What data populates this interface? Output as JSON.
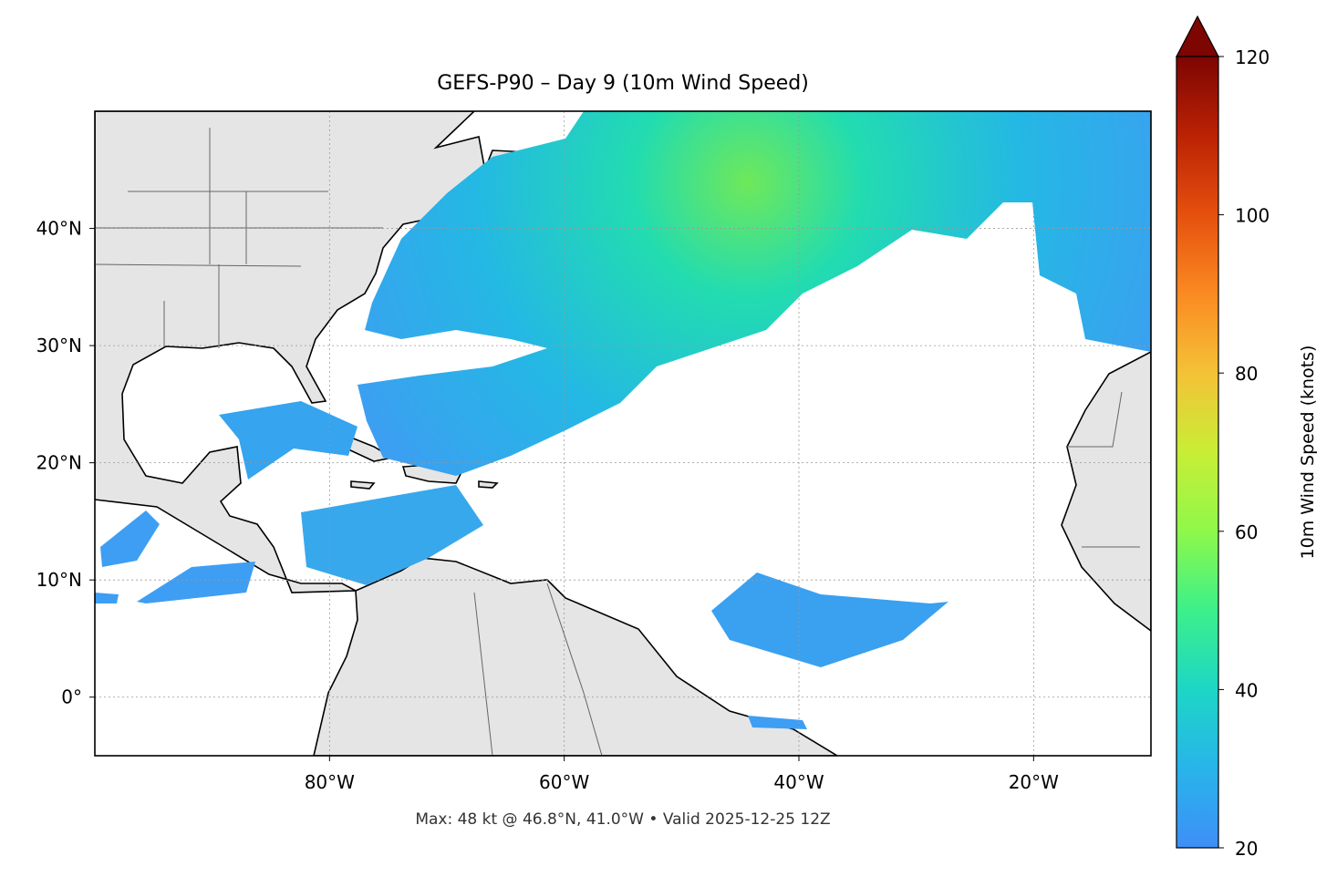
{
  "title": "GEFS-P90 – Day 9 (10m Wind Speed)",
  "footer": "Max: 48 kt @ 46.8°N, 41.0°W • Valid 2025-12-25 12Z",
  "map": {
    "lon_lim": [
      -100,
      -10
    ],
    "lat_lim": [
      -5,
      50
    ],
    "lon_ticks": [
      {
        "value": -80,
        "label": "80°W"
      },
      {
        "value": -60,
        "label": "60°W"
      },
      {
        "value": -40,
        "label": "40°W"
      },
      {
        "value": -20,
        "label": "20°W"
      }
    ],
    "lat_ticks": [
      {
        "value": 0,
        "label": "0°"
      },
      {
        "value": 10,
        "label": "10°N"
      },
      {
        "value": 20,
        "label": "20°N"
      },
      {
        "value": 30,
        "label": "30°N"
      },
      {
        "value": 40,
        "label": "40°N"
      }
    ],
    "grid": true
  },
  "colorbar": {
    "label": "10m Wind Speed (knots)",
    "lim": [
      20,
      120
    ],
    "ticks": [
      20,
      40,
      60,
      80,
      100,
      120
    ],
    "extend": "max"
  }
}
